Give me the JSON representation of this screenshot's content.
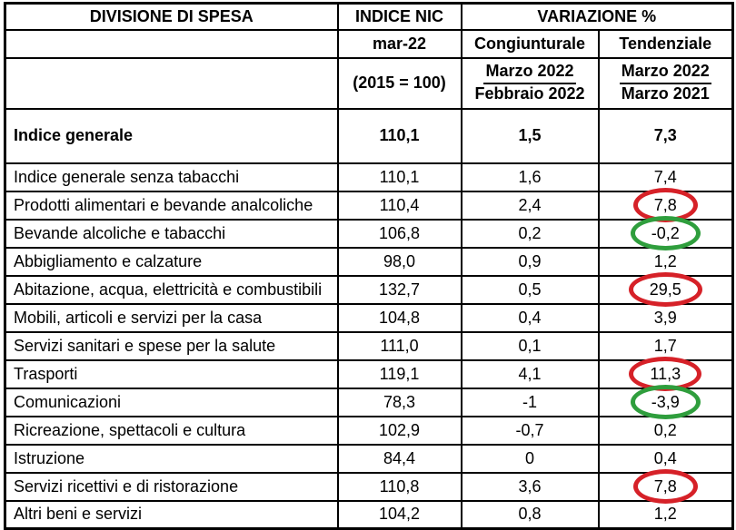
{
  "page": {
    "background": "#ffffff"
  },
  "table": {
    "header": {
      "divisione": "DIVISIONE DI SPESA",
      "indice_nic": "INDICE NIC",
      "variazione": "VARIAZIONE %",
      "mar22": "mar-22",
      "congiunturale": "Congiunturale",
      "tendenziale": "Tendenziale",
      "base": "(2015 = 100)",
      "cong_num": "Marzo 2022",
      "cong_den": "Febbraio 2022",
      "tend_num": "Marzo 2022",
      "tend_den": "Marzo 2021"
    },
    "colors": {
      "border": "#000000",
      "text": "#000000",
      "circle_red": "#d62128",
      "circle_green": "#2f9e3d"
    },
    "rows": [
      {
        "label": "Indice generale",
        "nic": "110,1",
        "cong": "1,5",
        "tend": "7,3",
        "bold": true,
        "circle": null
      },
      {
        "label": "Indice generale senza tabacchi",
        "nic": "110,1",
        "cong": "1,6",
        "tend": "7,4",
        "circle": null
      },
      {
        "label": "Prodotti alimentari e bevande analcoliche",
        "nic": "110,4",
        "cong": "2,4",
        "tend": "7,8",
        "circle": "red"
      },
      {
        "label": "Bevande alcoliche e tabacchi",
        "nic": "106,8",
        "cong": "0,2",
        "tend": "-0,2",
        "circle": "green"
      },
      {
        "label": "Abbigliamento e calzature",
        "nic": "98,0",
        "cong": "0,9",
        "tend": "1,2",
        "circle": null
      },
      {
        "label": "Abitazione, acqua, elettricità e combustibili",
        "nic": "132,7",
        "cong": "0,5",
        "tend": "29,5",
        "circle": "red"
      },
      {
        "label": "Mobili, articoli e servizi per la casa",
        "nic": "104,8",
        "cong": "0,4",
        "tend": "3,9",
        "circle": null
      },
      {
        "label": "Servizi sanitari e spese per la salute",
        "nic": "111,0",
        "cong": "0,1",
        "tend": "1,7",
        "circle": null
      },
      {
        "label": "Trasporti",
        "nic": "119,1",
        "cong": "4,1",
        "tend": "11,3",
        "circle": "red"
      },
      {
        "label": "Comunicazioni",
        "nic": "78,3",
        "cong": "-1",
        "tend": "-3,9",
        "circle": "green"
      },
      {
        "label": "Ricreazione, spettacoli e cultura",
        "nic": "102,9",
        "cong": "-0,7",
        "tend": "0,2",
        "circle": null
      },
      {
        "label": "Istruzione",
        "nic": "84,4",
        "cong": "0",
        "tend": "0,4",
        "circle": null
      },
      {
        "label": "Servizi ricettivi e di ristorazione",
        "nic": "110,8",
        "cong": "3,6",
        "tend": "7,8",
        "circle": "red"
      },
      {
        "label": "Altri beni e servizi",
        "nic": "104,2",
        "cong": "0,8",
        "tend": "1,2",
        "circle": null
      }
    ]
  },
  "chart_data": {
    "type": "table",
    "title": "",
    "columns": [
      "DIVISIONE DI SPESA",
      "INDICE NIC mar-22 (2015 = 100)",
      "VARIAZIONE % Congiunturale (Marzo 2022 / Febbraio 2022)",
      "VARIAZIONE % Tendenziale (Marzo 2022 / Marzo 2021)"
    ],
    "rows": [
      [
        "Indice generale",
        110.1,
        1.5,
        7.3
      ],
      [
        "Indice generale senza tabacchi",
        110.1,
        1.6,
        7.4
      ],
      [
        "Prodotti alimentari e bevande analcoliche",
        110.4,
        2.4,
        7.8
      ],
      [
        "Bevande alcoliche e tabacchi",
        106.8,
        0.2,
        -0.2
      ],
      [
        "Abbigliamento e calzature",
        98.0,
        0.9,
        1.2
      ],
      [
        "Abitazione, acqua, elettricità e combustibili",
        132.7,
        0.5,
        29.5
      ],
      [
        "Mobili, articoli e servizi per la casa",
        104.8,
        0.4,
        3.9
      ],
      [
        "Servizi sanitari e spese per la salute",
        111.0,
        0.1,
        1.7
      ],
      [
        "Trasporti",
        119.1,
        4.1,
        11.3
      ],
      [
        "Comunicazioni",
        78.3,
        -1,
        -3.9
      ],
      [
        "Ricreazione, spettacoli e cultura",
        102.9,
        -0.7,
        0.2
      ],
      [
        "Istruzione",
        84.4,
        0,
        0.4
      ],
      [
        "Servizi ricettivi e di ristorazione",
        110.8,
        3.6,
        7.8
      ],
      [
        "Altri beni e servizi",
        104.2,
        0.8,
        1.2
      ]
    ],
    "annotations": [
      {
        "row": "Prodotti alimentari e bevande analcoliche",
        "column": "Tendenziale",
        "value": 7.8,
        "mark": "red-ellipse"
      },
      {
        "row": "Bevande alcoliche e tabacchi",
        "column": "Tendenziale",
        "value": -0.2,
        "mark": "green-ellipse"
      },
      {
        "row": "Abitazione, acqua, elettricità e combustibili",
        "column": "Tendenziale",
        "value": 29.5,
        "mark": "red-ellipse"
      },
      {
        "row": "Trasporti",
        "column": "Tendenziale",
        "value": 11.3,
        "mark": "red-ellipse"
      },
      {
        "row": "Comunicazioni",
        "column": "Tendenziale",
        "value": -3.9,
        "mark": "green-ellipse"
      },
      {
        "row": "Servizi ricettivi e di ristorazione",
        "column": "Tendenziale",
        "value": 7.8,
        "mark": "red-ellipse"
      }
    ],
    "legend_position": "none",
    "grid": true
  }
}
